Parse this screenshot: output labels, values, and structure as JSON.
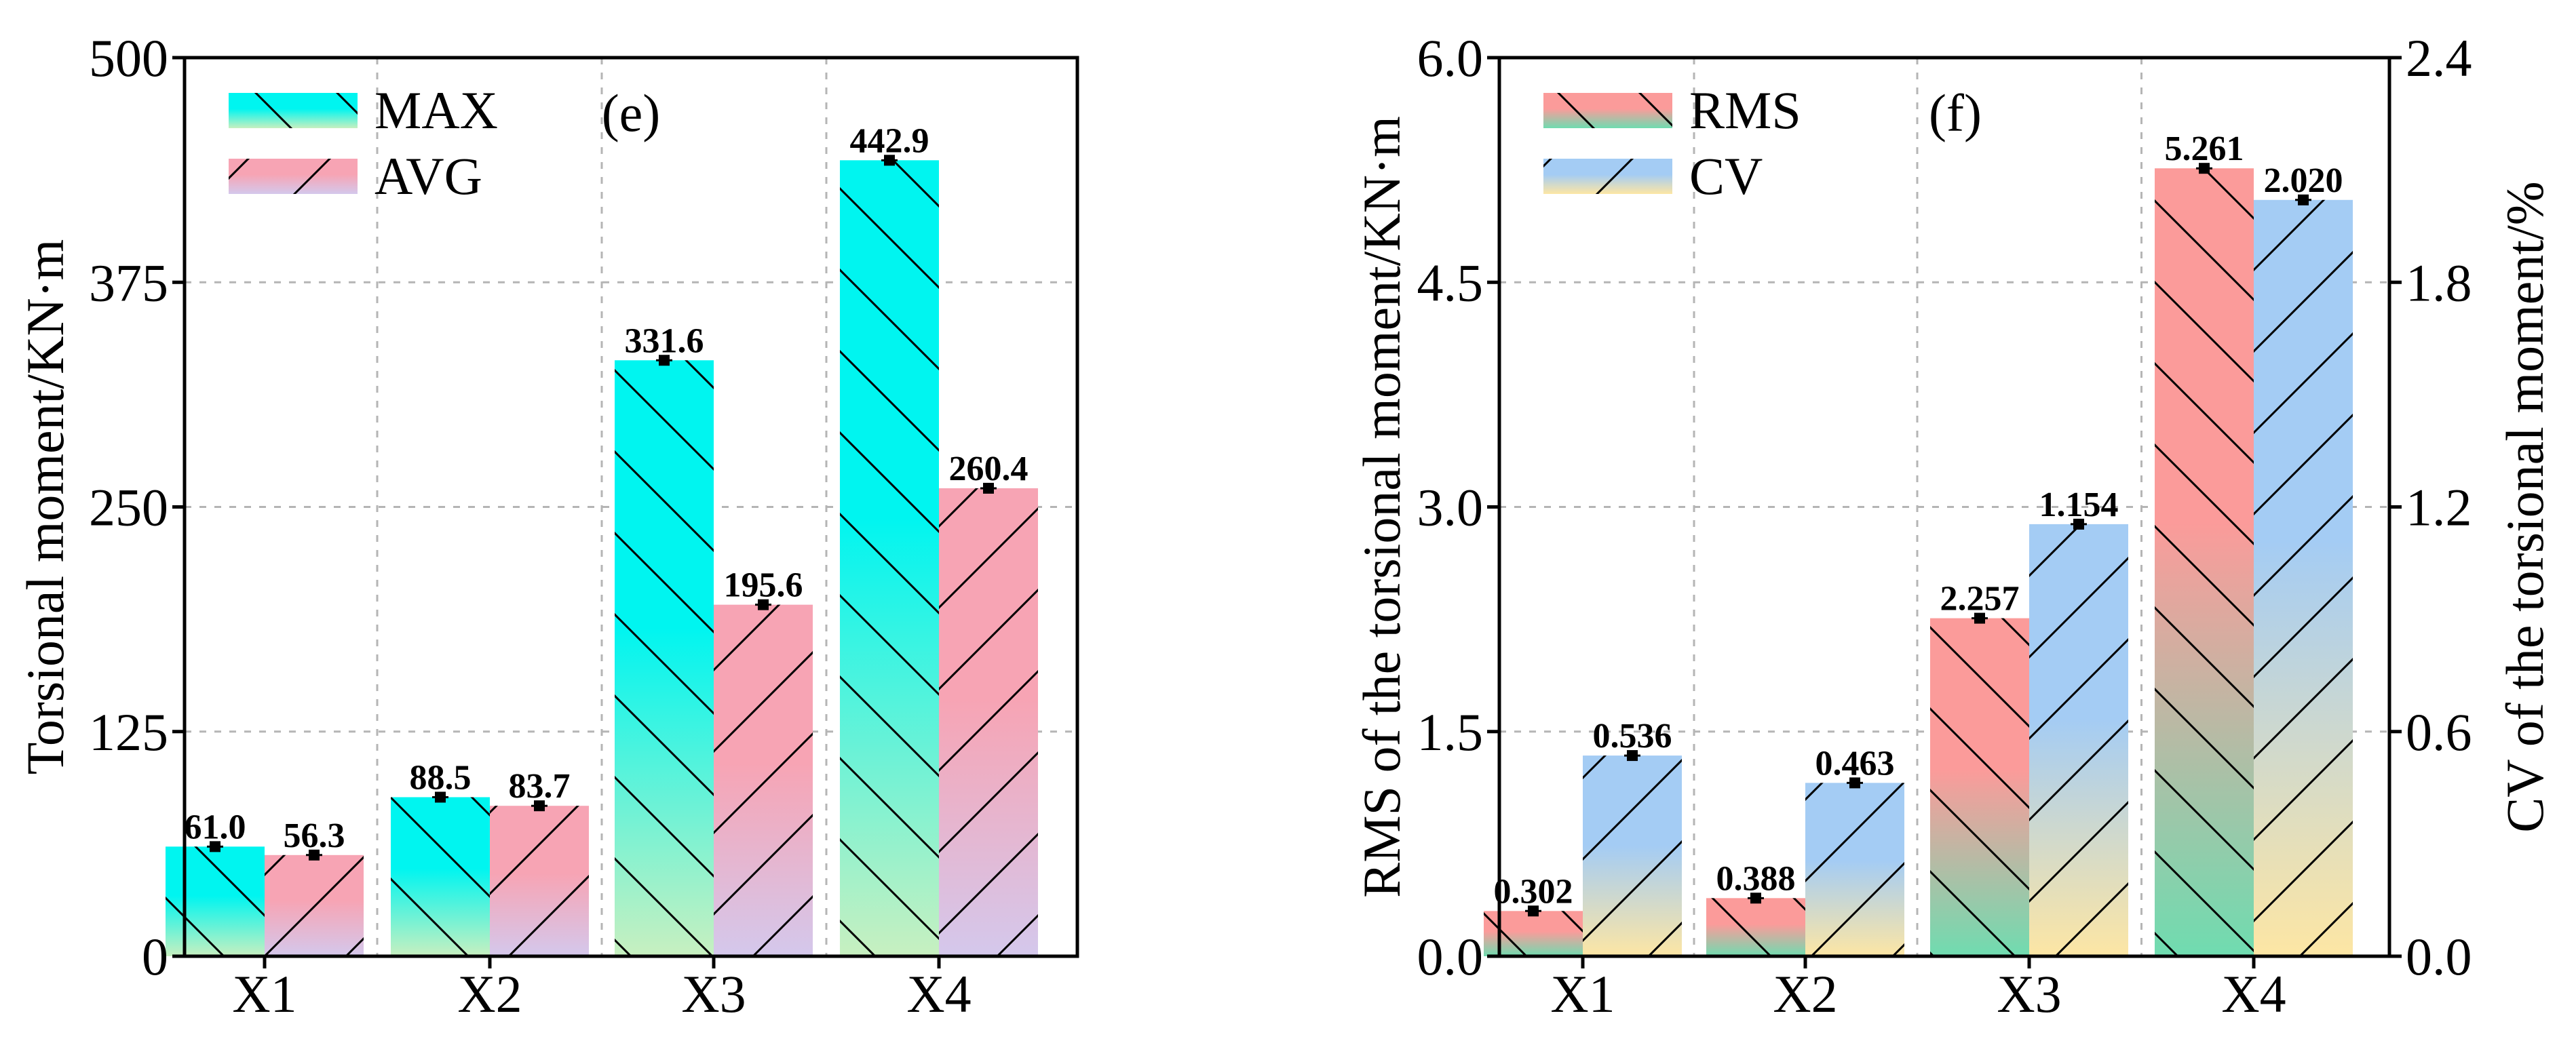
{
  "chart_data": [
    {
      "type": "bar",
      "panel_tag": "(e)",
      "categories": [
        "X1",
        "X2",
        "X3",
        "X4"
      ],
      "series": [
        {
          "name": "MAX",
          "values": [
            61.0,
            88.5,
            331.6,
            442.9
          ],
          "labels": [
            "61.0",
            "88.5",
            "331.6",
            "442.9"
          ],
          "color_top": "#00f5f0",
          "color_bottom": "#c8f0c0",
          "hatch": "backslash"
        },
        {
          "name": "AVG",
          "values": [
            56.3,
            83.7,
            195.6,
            260.4
          ],
          "labels": [
            "56.3",
            "83.7",
            "195.6",
            "260.4"
          ],
          "color_top": "#f7a4b4",
          "color_bottom": "#d4c8ec",
          "hatch": "slash"
        }
      ],
      "ylabel": "Torsional moment/KN·m",
      "ylim": [
        0,
        500
      ],
      "yticks": [
        "0",
        "125",
        "250",
        "375",
        "500"
      ],
      "grid": true,
      "legend_position": "top-left"
    },
    {
      "type": "bar",
      "panel_tag": "(f)",
      "categories": [
        "X1",
        "X2",
        "X3",
        "X4"
      ],
      "series": [
        {
          "name": "RMS",
          "axis": "left",
          "values": [
            0.302,
            0.388,
            2.257,
            5.261
          ],
          "labels": [
            "0.302",
            "0.388",
            "2.257",
            "5.261"
          ],
          "color_top": "#fb9b9a",
          "color_bottom": "#6fdcb0",
          "hatch": "backslash"
        },
        {
          "name": "CV",
          "axis": "right",
          "values": [
            0.536,
            0.463,
            1.154,
            2.02
          ],
          "labels": [
            "0.536",
            "0.463",
            "1.154",
            "2.020"
          ],
          "color_top": "#a4ccf4",
          "color_bottom": "#fde6a4",
          "hatch": "slash"
        }
      ],
      "ylabel": "RMS of the torsional moment/KN·m",
      "ylabel_right": "CV of the torsional moment/%",
      "ylim": [
        0,
        6.0
      ],
      "ylim_right": [
        0,
        2.4
      ],
      "yticks": [
        "0.0",
        "1.5",
        "3.0",
        "4.5",
        "6.0"
      ],
      "yticks_right": [
        "0.0",
        "0.6",
        "1.2",
        "1.8",
        "2.4"
      ],
      "grid": true,
      "legend_position": "top-left"
    }
  ]
}
